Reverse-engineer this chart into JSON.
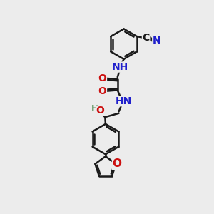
{
  "bg_color": "#ececec",
  "bond_color": "#1a1a1a",
  "bond_width": 1.8,
  "atom_colors": {
    "C": "#1a1a1a",
    "N": "#2020cc",
    "O": "#cc1010",
    "H": "#6a9a6a"
  },
  "font_size": 10,
  "fig_size": [
    3.0,
    3.0
  ],
  "dpi": 100,
  "xlim": [
    0,
    10
  ],
  "ylim": [
    0,
    10
  ]
}
